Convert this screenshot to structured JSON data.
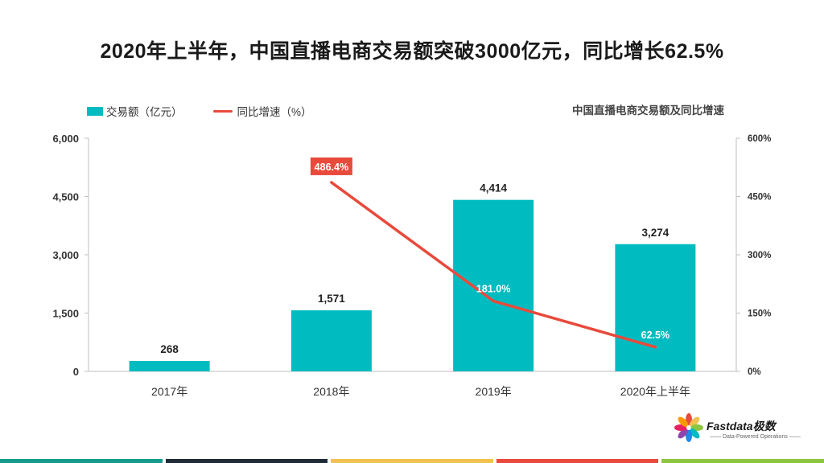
{
  "title": "2020年上半年，中国直播电商交易额突破3000亿元，同比增长62.5%",
  "legend": {
    "bar_label": "交易额（亿元）",
    "line_label": "同比增速（%）"
  },
  "subtitle": "中国直播电商交易额及同比增速",
  "logo": {
    "name": "Fastdata极数",
    "tagline": "—— Data-Powered Operations ——"
  },
  "colors": {
    "bar": "#00BCC0",
    "line": "#E84A3C",
    "footer": [
      "#139C8C",
      "#1E2A38",
      "#F2C14E",
      "#E84A3C",
      "#8CC63F"
    ]
  },
  "chart_data": {
    "type": "bar",
    "categories": [
      "2017年",
      "2018年",
      "2019年",
      "2020年上半年"
    ],
    "series": [
      {
        "name": "交易额（亿元）",
        "type": "bar",
        "axis": "left",
        "values": [
          268,
          1571,
          4414,
          3274
        ],
        "labels": [
          "268",
          "1,571",
          "4,414",
          "3,274"
        ]
      },
      {
        "name": "同比增速（%）",
        "type": "line",
        "axis": "right",
        "values": [
          null,
          486.4,
          181.0,
          62.5
        ],
        "labels": [
          "",
          "486.4%",
          "181.0%",
          "62.5%"
        ]
      }
    ],
    "ylim_left": [
      0,
      6000
    ],
    "yticks_left": [
      "0",
      "1,500",
      "3,000",
      "4,500",
      "6,000"
    ],
    "ylim_right": [
      0,
      600
    ],
    "yticks_right": [
      "0%",
      "150%",
      "300%",
      "450%",
      "600%"
    ],
    "grid": false,
    "legend_position": "top-left"
  }
}
